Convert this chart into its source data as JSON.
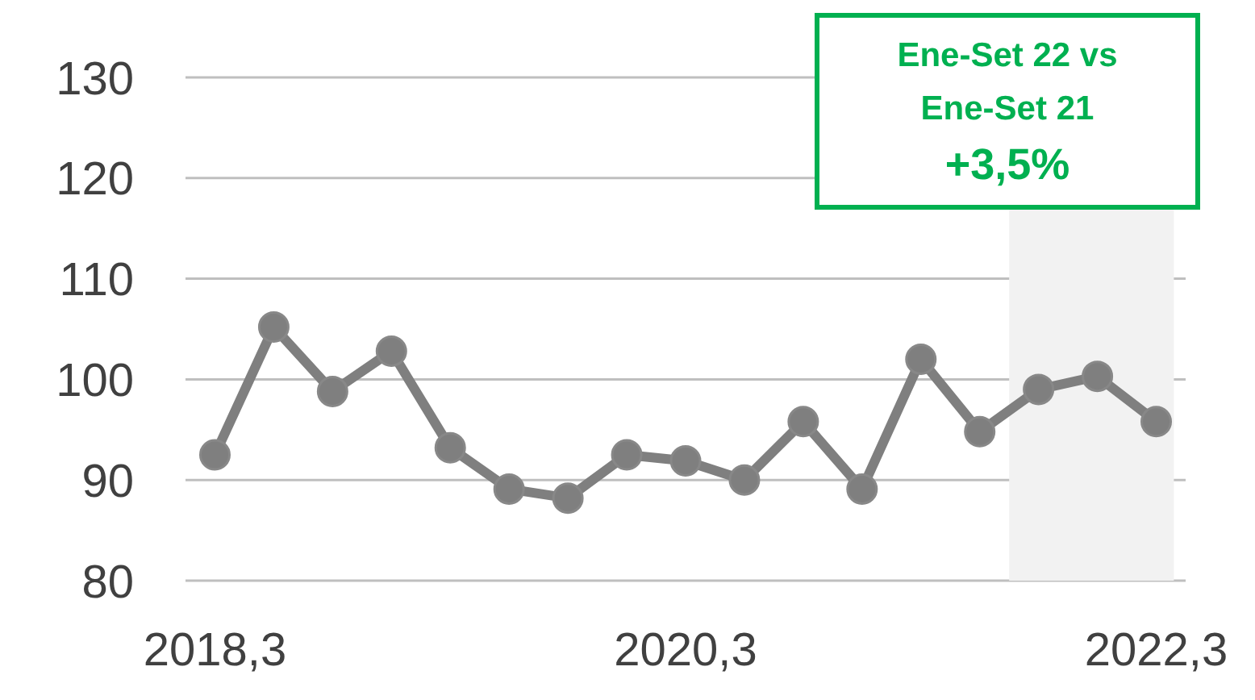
{
  "chart_data": {
    "type": "line",
    "categories": [
      "2018,3",
      null,
      null,
      null,
      null,
      null,
      null,
      null,
      "2020,3",
      null,
      null,
      null,
      null,
      null,
      null,
      null,
      "2022,3"
    ],
    "series": [
      {
        "color": "#7f7f7f",
        "values": [
          92.5,
          105.2,
          98.8,
          102.8,
          93.2,
          89.1,
          88.2,
          92.5,
          91.9,
          90.0,
          95.8,
          89.1,
          102.0,
          94.8,
          99.0,
          100.3,
          95.8
        ]
      }
    ],
    "ylim": [
      80,
      130
    ],
    "yticks": [
      80,
      90,
      100,
      110,
      120,
      130
    ],
    "grid": "y",
    "marker": "circle",
    "line_style": "solid",
    "annotations": [
      "Ene-Set 22 vs",
      "Ene-Set 21",
      "+3,5%"
    ]
  }
}
